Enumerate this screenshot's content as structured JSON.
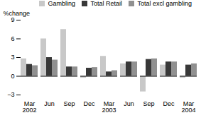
{
  "chart_data": {
    "type": "bar",
    "categories": [
      "Mar\n2002",
      "Jun",
      "Sep",
      "Dec",
      "Mar\n2003",
      "Jun",
      "Sep",
      "Dec",
      "Mar\n2004"
    ],
    "series": [
      {
        "name": "Gambling",
        "color": "#c8c8c8",
        "values": [
          2.8,
          6.0,
          7.5,
          -0.3,
          3.2,
          2.0,
          -2.5,
          1.8,
          -0.3
        ]
      },
      {
        "name": "Total Retail",
        "color": "#383838",
        "values": [
          1.9,
          3.0,
          1.5,
          1.3,
          0.7,
          2.3,
          2.7,
          2.3,
          1.8
        ]
      },
      {
        "name": "Total excl gambling",
        "color": "#909090",
        "values": [
          1.7,
          2.6,
          1.5,
          1.4,
          0.9,
          2.3,
          2.8,
          2.3,
          2.0
        ]
      }
    ],
    "ylabel": "%change",
    "ylim": [
      -3,
      9
    ],
    "yticks": [
      -3,
      0,
      3,
      6,
      9
    ],
    "legend": "upper right"
  }
}
